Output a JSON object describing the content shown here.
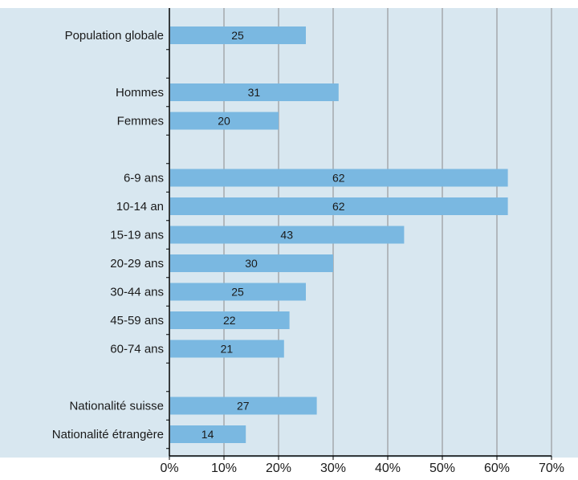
{
  "chart_data": {
    "type": "bar",
    "orientation": "horizontal",
    "categories": [
      "Population globale",
      "",
      "Hommes",
      "Femmes",
      "",
      "6-9 ans",
      "10-14 an",
      "15-19 ans",
      "20-29 ans",
      "30-44 ans",
      "45-59 ans",
      "60-74 ans",
      "",
      "Nationalité suisse",
      "Nationalité étrangère"
    ],
    "values": [
      25,
      null,
      31,
      20,
      null,
      62,
      62,
      43,
      30,
      25,
      22,
      21,
      null,
      27,
      14
    ],
    "data_labels": [
      "25",
      "",
      "31",
      "20",
      "",
      "62",
      "62",
      "43",
      "30",
      "25",
      "22",
      "21",
      "",
      "27",
      "14"
    ],
    "xlim": [
      0,
      70
    ],
    "x_ticks": [
      "0%",
      "10%",
      "20%",
      "30%",
      "40%",
      "50%",
      "60%",
      "70%"
    ],
    "grid": "vertical",
    "legend": "none",
    "title": "",
    "xlabel": "",
    "ylabel": "",
    "colors": {
      "plot_background": "#d8e7f0",
      "bar": "#7ab8e1",
      "grid": "#8a8a8a",
      "axis": "#000000"
    }
  }
}
